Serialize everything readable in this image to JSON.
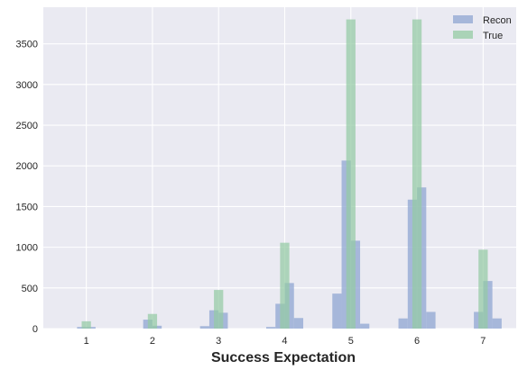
{
  "chart_data": {
    "type": "bar",
    "xlabel": "Success Expectation",
    "ylabel": "",
    "xlim": [
      0.35,
      7.5
    ],
    "ylim": [
      0,
      3950
    ],
    "xticks": [
      1,
      2,
      3,
      4,
      5,
      6,
      7
    ],
    "yticks": [
      0,
      500,
      1000,
      1500,
      2000,
      2500,
      3000,
      3500
    ],
    "grid": true,
    "legend_position": "top-right",
    "bin_width": 0.14,
    "series": [
      {
        "name": "Recon",
        "color": "#8fa6d1",
        "bins": [
          {
            "x": 0.93,
            "value": 20
          },
          {
            "x": 1.07,
            "value": 20
          },
          {
            "x": 1.93,
            "value": 110
          },
          {
            "x": 2.07,
            "value": 35
          },
          {
            "x": 2.79,
            "value": 30
          },
          {
            "x": 2.93,
            "value": 225
          },
          {
            "x": 3.07,
            "value": 195
          },
          {
            "x": 3.79,
            "value": 20
          },
          {
            "x": 3.93,
            "value": 305
          },
          {
            "x": 4.07,
            "value": 560
          },
          {
            "x": 4.21,
            "value": 130
          },
          {
            "x": 4.79,
            "value": 430
          },
          {
            "x": 4.93,
            "value": 2065
          },
          {
            "x": 5.07,
            "value": 1080
          },
          {
            "x": 5.21,
            "value": 60
          },
          {
            "x": 5.79,
            "value": 125
          },
          {
            "x": 5.93,
            "value": 1585
          },
          {
            "x": 6.07,
            "value": 1735
          },
          {
            "x": 6.21,
            "value": 205
          },
          {
            "x": 6.93,
            "value": 205
          },
          {
            "x": 7.07,
            "value": 585
          },
          {
            "x": 7.21,
            "value": 125
          }
        ]
      },
      {
        "name": "True",
        "color": "#94cba3",
        "bins": [
          {
            "x": 1.0,
            "value": 90
          },
          {
            "x": 2.0,
            "value": 180
          },
          {
            "x": 3.0,
            "value": 475
          },
          {
            "x": 4.0,
            "value": 1055
          },
          {
            "x": 5.0,
            "value": 3800
          },
          {
            "x": 6.0,
            "value": 3800
          },
          {
            "x": 7.0,
            "value": 970
          }
        ]
      }
    ]
  }
}
